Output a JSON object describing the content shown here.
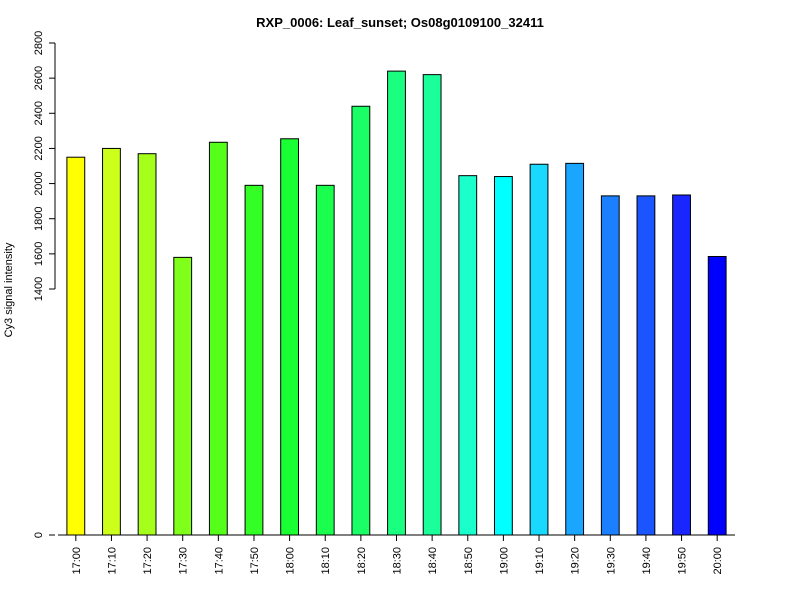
{
  "chart_data": {
    "type": "bar",
    "title": "RXP_0006: Leaf_sunset; Os08g0109100_32411",
    "xlabel": "",
    "ylabel": "Cy3 signal intensity",
    "categories": [
      "17:00",
      "17:10",
      "17:20",
      "17:30",
      "17:40",
      "17:50",
      "18:00",
      "18:10",
      "18:20",
      "18:30",
      "18:40",
      "18:50",
      "19:00",
      "19:10",
      "19:20",
      "19:30",
      "19:40",
      "19:50",
      "20:00"
    ],
    "values": [
      2150,
      2200,
      2170,
      1580,
      2235,
      1990,
      2255,
      1990,
      2440,
      2640,
      2620,
      2045,
      2040,
      2110,
      2115,
      1930,
      1930,
      1935,
      1585
    ],
    "colors": [
      "#FFFF00",
      "#CCFF1A",
      "#A6FF1A",
      "#80FF1A",
      "#55FF1A",
      "#33FF26",
      "#1AFF33",
      "#1AFF4D",
      "#1AFF66",
      "#1AFF80",
      "#1AFF99",
      "#1AFFCC",
      "#00FFFF",
      "#1AD9FF",
      "#1AA6FF",
      "#1A80FF",
      "#1A55FF",
      "#1A26FF",
      "#0000FF"
    ],
    "ylim": [
      0,
      2800
    ],
    "ytick_values": [
      0,
      1400,
      1600,
      1800,
      2000,
      2200,
      2400,
      2600,
      2800
    ],
    "ytick_labels": [
      "0",
      "1400",
      "1600",
      "1800",
      "2000",
      "2200",
      "2400",
      "2600",
      "2800"
    ],
    "axis_break": {
      "from": 0,
      "to": 1400
    },
    "grid": false,
    "legend": "none"
  }
}
